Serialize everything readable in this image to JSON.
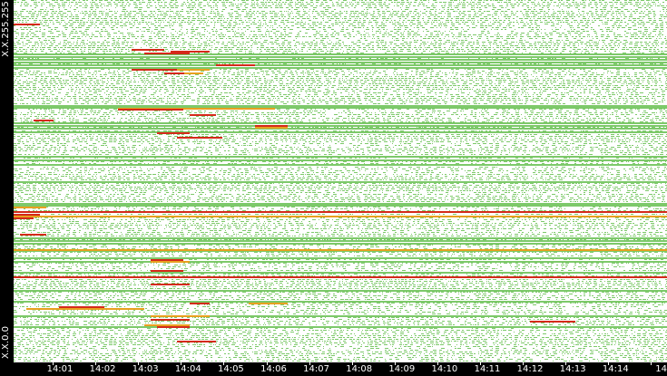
{
  "chart_data": {
    "type": "heatmap",
    "y_axis": {
      "top_label": "X.X.255.255",
      "bottom_label": "X.X.0.0"
    },
    "x_axis": {
      "tick_labels": [
        "14:01",
        "14:02",
        "14:03",
        "14:04",
        "14:05",
        "14:06",
        "14:07",
        "14:08",
        "14:09",
        "14:10",
        "14:11",
        "14:12",
        "14:13",
        "14:14",
        "14"
      ]
    },
    "colors": {
      "background": "#ffffff",
      "low": "#7dc96a",
      "medium": "#e8a020",
      "high": "#d42a1a",
      "axis": "#000000",
      "axis_text": "#ffffff"
    },
    "solid_green_rows_fraction": [
      0.148,
      0.155,
      0.162,
      0.17,
      0.178,
      0.186,
      0.29,
      0.296,
      0.338,
      0.345,
      0.352,
      0.362,
      0.43,
      0.44,
      0.452,
      0.5,
      0.56,
      0.566,
      0.655,
      0.662,
      0.67,
      0.69,
      0.71,
      0.72,
      0.75,
      0.8,
      0.83,
      0.87,
      0.9
    ],
    "red_full_rows_fraction": [
      0.582,
      0.762
    ],
    "orange_full_rows_fraction": [
      0.596,
      0.688
    ],
    "red_segments": [
      {
        "x0": 0.0,
        "x1": 0.04,
        "y": 0.065
      },
      {
        "x0": 0.18,
        "x1": 0.23,
        "y": 0.135
      },
      {
        "x0": 0.24,
        "x1": 0.3,
        "y": 0.14
      },
      {
        "x0": 0.2,
        "x1": 0.27,
        "y": 0.145
      },
      {
        "x0": 0.18,
        "x1": 0.25,
        "y": 0.19
      },
      {
        "x0": 0.31,
        "x1": 0.37,
        "y": 0.178
      },
      {
        "x0": 0.23,
        "x1": 0.26,
        "y": 0.2
      },
      {
        "x0": 0.16,
        "x1": 0.26,
        "y": 0.3
      },
      {
        "x0": 0.27,
        "x1": 0.31,
        "y": 0.315
      },
      {
        "x0": 0.03,
        "x1": 0.06,
        "y": 0.33
      },
      {
        "x0": 0.37,
        "x1": 0.42,
        "y": 0.345
      },
      {
        "x0": 0.22,
        "x1": 0.27,
        "y": 0.365
      },
      {
        "x0": 0.25,
        "x1": 0.32,
        "y": 0.378
      },
      {
        "x0": 0.0,
        "x1": 0.04,
        "y": 0.59
      },
      {
        "x0": 0.0,
        "x1": 0.03,
        "y": 0.6
      },
      {
        "x0": 0.01,
        "x1": 0.05,
        "y": 0.645
      },
      {
        "x0": 0.21,
        "x1": 0.26,
        "y": 0.715
      },
      {
        "x0": 0.21,
        "x1": 0.26,
        "y": 0.745
      },
      {
        "x0": 0.21,
        "x1": 0.27,
        "y": 0.782
      },
      {
        "x0": 0.27,
        "x1": 0.3,
        "y": 0.835
      },
      {
        "x0": 0.07,
        "x1": 0.14,
        "y": 0.845
      },
      {
        "x0": 0.21,
        "x1": 0.27,
        "y": 0.88
      },
      {
        "x0": 0.22,
        "x1": 0.27,
        "y": 0.9
      },
      {
        "x0": 0.25,
        "x1": 0.31,
        "y": 0.94
      },
      {
        "x0": 0.79,
        "x1": 0.86,
        "y": 0.885
      }
    ],
    "orange_segments": [
      {
        "x0": 0.23,
        "x1": 0.3,
        "y": 0.19
      },
      {
        "x0": 0.23,
        "x1": 0.29,
        "y": 0.2
      },
      {
        "x0": 0.16,
        "x1": 0.4,
        "y": 0.298
      },
      {
        "x0": 0.37,
        "x1": 0.42,
        "y": 0.35
      },
      {
        "x0": 0.02,
        "x1": 0.2,
        "y": 0.85
      },
      {
        "x0": 0.21,
        "x1": 0.27,
        "y": 0.72
      },
      {
        "x0": 0.21,
        "x1": 0.3,
        "y": 0.87
      },
      {
        "x0": 0.2,
        "x1": 0.27,
        "y": 0.895
      },
      {
        "x0": 0.36,
        "x1": 0.42,
        "y": 0.835
      },
      {
        "x0": 0.0,
        "x1": 0.05,
        "y": 0.57
      }
    ]
  }
}
